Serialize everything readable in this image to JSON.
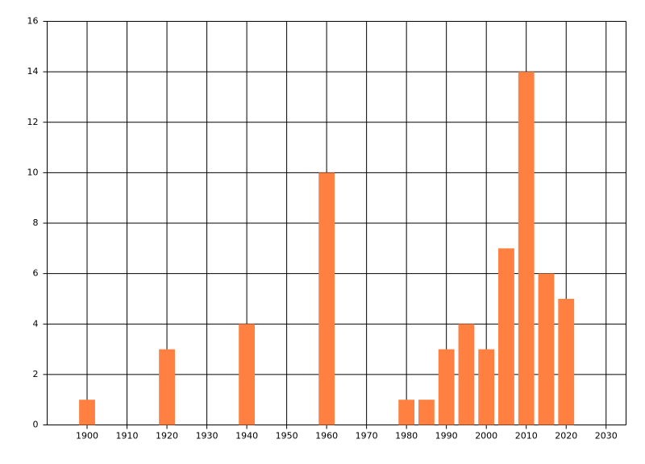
{
  "chart_data": {
    "type": "bar",
    "x": [
      1900,
      1920,
      1940,
      1960,
      1980,
      1985,
      1990,
      1995,
      2000,
      2005,
      2010,
      2015,
      2020
    ],
    "values": [
      1,
      3,
      4,
      10,
      1,
      1,
      3,
      4,
      3,
      7,
      14,
      6,
      5
    ],
    "color": "#ff8040",
    "xlim": [
      1890,
      2035
    ],
    "xticks": [
      1900,
      1910,
      1920,
      1930,
      1940,
      1950,
      1960,
      1970,
      1980,
      1990,
      2000,
      2010,
      2020,
      2030
    ],
    "ylim": [
      0,
      16
    ],
    "yticks": [
      0,
      2,
      4,
      6,
      8,
      10,
      12,
      14,
      16
    ],
    "grid": true
  }
}
